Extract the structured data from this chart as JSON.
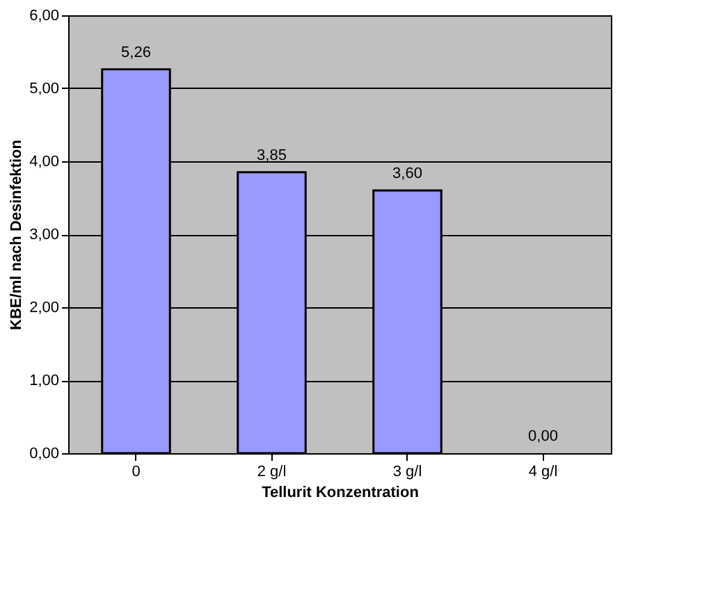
{
  "chart_data": {
    "type": "bar",
    "xlabel": "Tellurit Konzentration",
    "ylabel": "KBE/ml nach Desinfektion",
    "categories": [
      "0",
      "2 g/l",
      "3 g/l",
      "4 g/l"
    ],
    "values": [
      5.26,
      3.85,
      3.6,
      0.0
    ],
    "value_labels": [
      "5,26",
      "3,85",
      "3,60",
      "0,00"
    ],
    "color": "#9999ff",
    "ylim": [
      0,
      6
    ],
    "yticks": [
      {
        "value": 0,
        "label": "0,00"
      },
      {
        "value": 1,
        "label": "1,00"
      },
      {
        "value": 2,
        "label": "2,00"
      },
      {
        "value": 3,
        "label": "3,00"
      },
      {
        "value": 4,
        "label": "4,00"
      },
      {
        "value": 5,
        "label": "5,00"
      },
      {
        "value": 6,
        "label": "6,00"
      }
    ],
    "grid": "y"
  }
}
